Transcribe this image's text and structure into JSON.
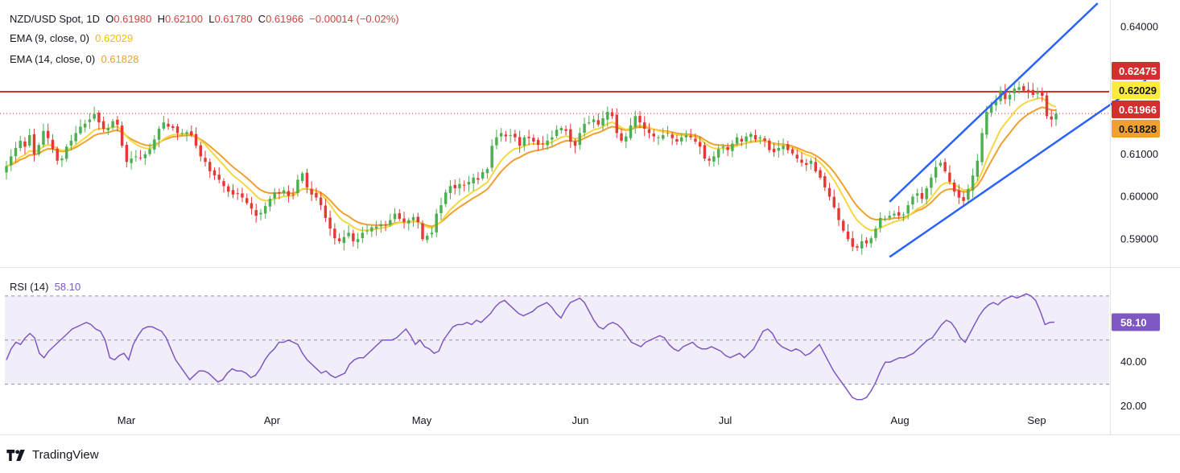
{
  "header": {
    "symbol": "NZD/USD Spot, 1D",
    "open_label": "O",
    "open": "0.61980",
    "high_label": "H",
    "high": "0.62100",
    "low_label": "L",
    "low": "0.61780",
    "close_label": "C",
    "close": "0.61966",
    "change": "−0.00014 (−0.02%)"
  },
  "indicators": {
    "ema9_label": "EMA (9, close, 0)",
    "ema9_value": "0.62029",
    "ema9_color": "#f5d742",
    "ema14_label": "EMA (14, close, 0)",
    "ema14_value": "0.61828",
    "ema14_color": "#f0a030",
    "rsi_label": "RSI (14)",
    "rsi_value": "58.10",
    "rsi_color": "#7e57c2"
  },
  "branding": {
    "name": "TradingView"
  },
  "chart_data": [
    {
      "type": "candlestick",
      "title": "NZD/USD Spot, 1D",
      "x_tick_labels": [
        "Mar",
        "Apr",
        "May",
        "Jun",
        "Jul",
        "Aug",
        "Sep"
      ],
      "y_tick_labels": [
        "0.64000",
        "0.61000",
        "0.60000",
        "0.59000"
      ],
      "ylim": [
        0.5838,
        0.6456
      ],
      "resistance_level": 0.62475,
      "price_labels": [
        {
          "name": "resistance",
          "value": "0.62475",
          "color": "#d32f2f"
        },
        {
          "name": "ema9",
          "value": "0.62029",
          "color": "#ffeb3b"
        },
        {
          "name": "last",
          "value": "0.61966",
          "color": "#d32f2f"
        },
        {
          "name": "ema14",
          "value": "0.61828",
          "color": "#f0a030"
        }
      ],
      "close_series": [
        0.6072,
        0.6095,
        0.6115,
        0.6132,
        0.6118,
        0.6145,
        0.61,
        0.6122,
        0.6155,
        0.6138,
        0.6112,
        0.6085,
        0.609,
        0.6118,
        0.6132,
        0.615,
        0.6165,
        0.6172,
        0.6182,
        0.6195,
        0.6175,
        0.616,
        0.6162,
        0.6178,
        0.617,
        0.612,
        0.6082,
        0.609,
        0.6095,
        0.6092,
        0.61,
        0.6112,
        0.6135,
        0.616,
        0.6175,
        0.6165,
        0.6162,
        0.615,
        0.615,
        0.6152,
        0.6145,
        0.612,
        0.6095,
        0.6082,
        0.606,
        0.605,
        0.604,
        0.6025,
        0.6012,
        0.6005,
        0.6008,
        0.5998,
        0.5985,
        0.5972,
        0.5955,
        0.5962,
        0.5978,
        0.5995,
        0.601,
        0.6008,
        0.6015,
        0.6002,
        0.6005,
        0.604,
        0.6055,
        0.6022,
        0.6005,
        0.5998,
        0.598,
        0.595,
        0.5925,
        0.5902,
        0.5895,
        0.5905,
        0.5915,
        0.5895,
        0.59,
        0.5915,
        0.592,
        0.5928,
        0.593,
        0.5935,
        0.5932,
        0.5945,
        0.596,
        0.5948,
        0.594,
        0.5945,
        0.5952,
        0.594,
        0.59,
        0.5908,
        0.5915,
        0.596,
        0.598,
        0.601,
        0.6025,
        0.602,
        0.603,
        0.6028,
        0.6035,
        0.6045,
        0.604,
        0.6058,
        0.6065,
        0.612,
        0.614,
        0.615,
        0.6142,
        0.6145,
        0.614,
        0.612,
        0.614,
        0.6138,
        0.613,
        0.6122,
        0.6125,
        0.6132,
        0.614,
        0.6158,
        0.6162,
        0.6155,
        0.613,
        0.612,
        0.615,
        0.6172,
        0.6175,
        0.6182,
        0.617,
        0.6185,
        0.62,
        0.619,
        0.615,
        0.6132,
        0.6142,
        0.6168,
        0.619,
        0.6175,
        0.616,
        0.615,
        0.6142,
        0.614,
        0.6145,
        0.615,
        0.6138,
        0.613,
        0.614,
        0.6145,
        0.614,
        0.613,
        0.6118,
        0.609,
        0.6085,
        0.6095,
        0.6112,
        0.6118,
        0.611,
        0.6125,
        0.614,
        0.613,
        0.6142,
        0.6148,
        0.6135,
        0.614,
        0.6132,
        0.611,
        0.6105,
        0.6115,
        0.612,
        0.611,
        0.6102,
        0.609,
        0.608,
        0.6075,
        0.6085,
        0.606,
        0.6045,
        0.6022,
        0.6,
        0.5975,
        0.5945,
        0.592,
        0.59,
        0.5882,
        0.588,
        0.5895,
        0.589,
        0.5902,
        0.5925,
        0.595,
        0.5948,
        0.5955,
        0.596,
        0.5955,
        0.5958,
        0.598,
        0.6,
        0.6008,
        0.5995,
        0.602,
        0.6045,
        0.607,
        0.608,
        0.606,
        0.6035,
        0.6012,
        0.5998,
        0.599,
        0.6018,
        0.605,
        0.6085,
        0.615,
        0.62,
        0.6215,
        0.6225,
        0.625,
        0.623,
        0.624,
        0.6255,
        0.6258,
        0.625,
        0.6248,
        0.624,
        0.6245,
        0.6238,
        0.619,
        0.6182,
        0.6196
      ],
      "ema9_last": 0.62029,
      "ema14_last": 0.61828,
      "channel": {
        "lower": [
          [
            191,
            0.5858
          ],
          [
            236,
            0.6218
          ]
        ],
        "upper": [
          [
            191,
            0.5988
          ],
          [
            236,
            0.6456
          ]
        ]
      }
    },
    {
      "type": "line",
      "title": "RSI (14)",
      "y_tick_labels": [
        "40.00",
        "20.00"
      ],
      "ylim": [
        20,
        82
      ],
      "bands": [
        30,
        50,
        70
      ],
      "last_value": 58.1,
      "values": [
        41,
        46,
        49,
        48,
        51,
        53,
        51,
        44,
        42,
        45,
        47,
        49,
        51,
        53,
        55,
        56,
        57,
        58,
        57,
        55,
        54,
        50,
        42,
        41,
        43,
        44,
        41,
        48,
        52,
        55,
        56,
        56,
        55,
        54,
        51,
        46,
        41,
        38,
        35,
        32,
        34,
        36,
        36,
        35,
        33,
        31,
        32,
        35,
        37,
        36,
        36,
        35,
        33,
        34,
        37,
        41,
        44,
        46,
        49,
        49,
        50,
        49,
        48,
        44,
        41,
        39,
        37,
        35,
        36,
        34,
        33,
        34,
        35,
        39,
        41,
        42,
        42,
        44,
        46,
        48,
        50,
        50,
        50,
        51,
        53,
        55,
        52,
        48,
        50,
        47,
        46,
        44,
        45,
        50,
        53,
        56,
        57,
        57,
        58,
        57,
        59,
        58,
        60,
        62,
        65,
        67,
        68,
        66,
        64,
        62,
        61,
        62,
        63,
        65,
        66,
        67,
        65,
        62,
        60,
        64,
        67,
        68,
        69,
        67,
        63,
        59,
        56,
        55,
        57,
        58,
        57,
        55,
        52,
        49,
        48,
        47,
        49,
        50,
        51,
        52,
        51,
        48,
        46,
        45,
        47,
        48,
        49,
        47,
        46,
        46,
        47,
        46,
        45,
        43,
        42,
        43,
        44,
        42,
        44,
        46,
        50,
        54,
        55,
        53,
        49,
        47,
        46,
        45,
        46,
        45,
        43,
        44,
        46,
        48,
        44,
        40,
        36,
        33,
        30,
        27,
        24,
        23,
        23,
        24,
        27,
        31,
        36,
        40,
        40,
        41,
        42,
        42,
        43,
        44,
        46,
        48,
        50,
        51,
        54,
        57,
        59,
        58,
        55,
        51,
        49,
        53,
        57,
        61,
        64,
        66,
        67,
        66,
        68,
        69,
        70,
        69,
        70,
        71,
        70,
        68,
        63,
        57,
        58,
        58.1
      ]
    }
  ]
}
